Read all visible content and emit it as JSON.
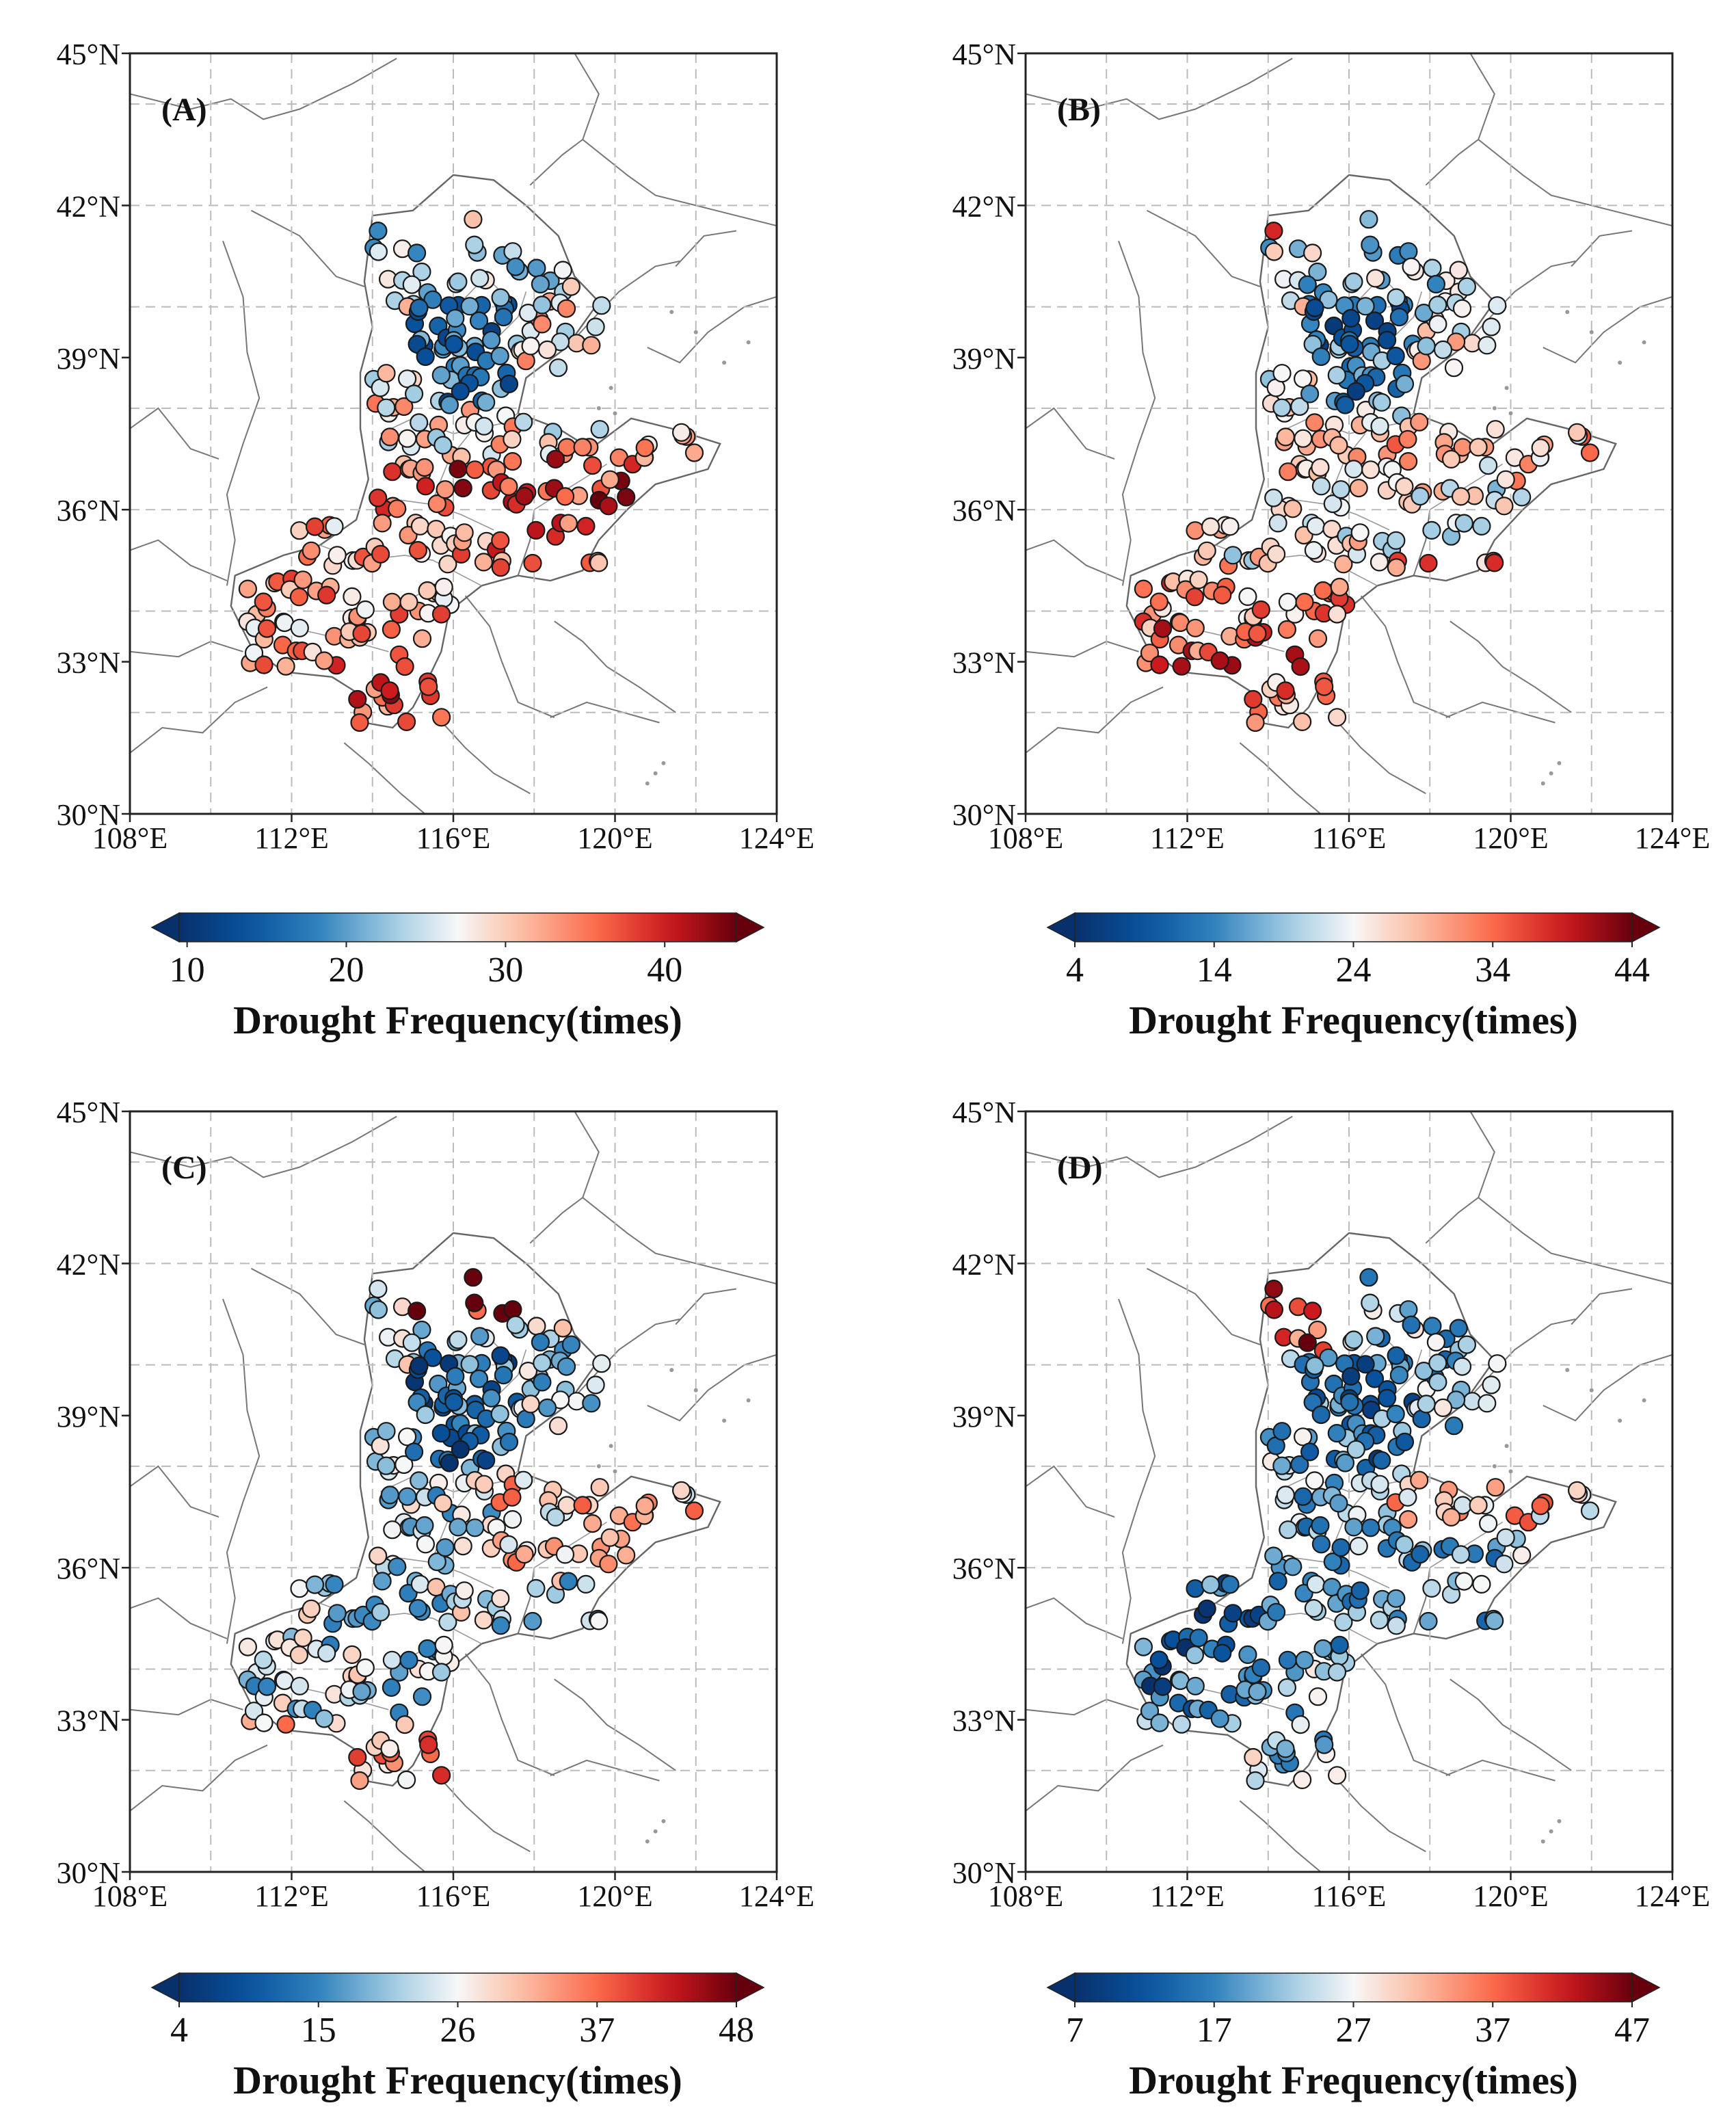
{
  "figure": {
    "lon_labels": [
      "108°E",
      "112°E",
      "116°E",
      "120°E",
      "124°E"
    ],
    "lat_labels": [
      "30°N",
      "33°N",
      "36°N",
      "39°N",
      "42°N",
      "45°N"
    ],
    "lon_values": [
      108,
      112,
      116,
      120,
      124
    ],
    "lat_values": [
      30,
      33,
      36,
      39,
      42,
      45
    ],
    "grid_lons": [
      110,
      112,
      114,
      116,
      118,
      120,
      122
    ],
    "grid_lats": [
      32,
      34,
      36,
      38,
      40,
      42,
      44
    ],
    "extent": {
      "lon": [
        108,
        124
      ],
      "lat": [
        30,
        45
      ]
    },
    "colors": {
      "low": "#08306b",
      "mid": "#f7f7f7",
      "high": "#67000d",
      "boundary": "#777777",
      "grid": "#bbbbbb"
    },
    "panels": [
      {
        "label": "(A)",
        "colorbar": {
          "ticks": [
            "10",
            "20",
            "30",
            "40"
          ],
          "min": 9.5,
          "max": 44.5,
          "title": "Drought Frequency(times)"
        }
      },
      {
        "label": "(B)",
        "colorbar": {
          "ticks": [
            "4",
            "14",
            "24",
            "34",
            "44"
          ],
          "min": 4,
          "max": 44,
          "title": "Drought Frequency(times)"
        }
      },
      {
        "label": "(C)",
        "colorbar": {
          "ticks": [
            "4",
            "15",
            "26",
            "37",
            "48"
          ],
          "min": 4,
          "max": 48,
          "title": "Drought Frequency(times)"
        }
      },
      {
        "label": "(D)",
        "colorbar": {
          "ticks": [
            "7",
            "17",
            "27",
            "37",
            "47"
          ],
          "min": 7,
          "max": 47,
          "title": "Drought Frequency(times)"
        }
      }
    ]
  }
}
